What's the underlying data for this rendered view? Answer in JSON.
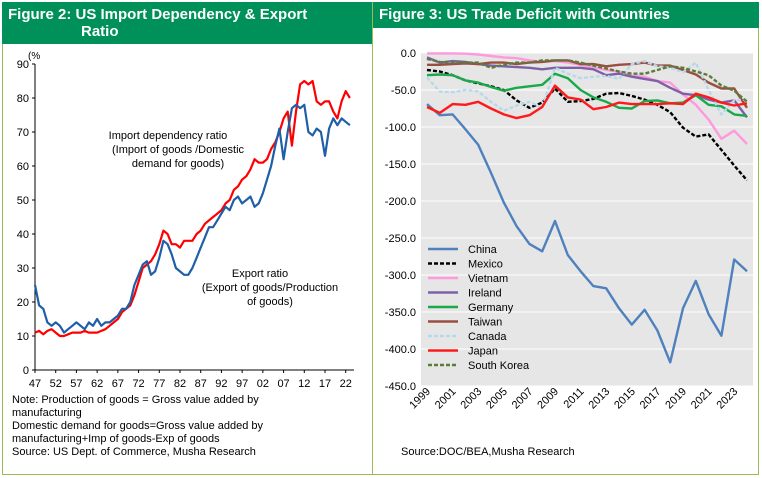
{
  "left": {
    "title_line1": "Figure 2: US Import Dependency & Export",
    "title_line2": "Ratio",
    "notes": [
      "Note: Production of goods = Gross value added by",
      "manufacturing",
      "Domestic demand for goods=Gross value added by",
      "manufacturing+Imp of goods-Exp of goods",
      "Source: US Dept. of  Commerce, Musha Research"
    ]
  },
  "right": {
    "title": "Figure 3: US Trade Deficit with Countries",
    "source": "Source:DOC/BEA,Musha Research"
  },
  "chart_data": [
    {
      "type": "line",
      "unit_label": "(%",
      "ylim": [
        0,
        90
      ],
      "yticks": [
        0,
        10,
        20,
        30,
        40,
        50,
        60,
        70,
        80,
        90
      ],
      "xlim": [
        47,
        24
      ],
      "xtick_labels": [
        "47",
        "52",
        "57",
        "62",
        "67",
        "72",
        "77",
        "82",
        "87",
        "92",
        "97",
        "02",
        "07",
        "12",
        "17",
        "22"
      ],
      "annotations": [
        {
          "lines": [
            "Import dependency ratio",
            "(Import of goods /Domestic",
            "demand for goods)"
          ]
        },
        {
          "lines": [
            "Export ratio",
            "(Export of goods/Production",
            "of goods)"
          ]
        }
      ],
      "series": [
        {
          "color": "#ff0000",
          "years": [
            1947,
            1948,
            1949,
            1950,
            1951,
            1952,
            1953,
            1954,
            1955,
            1956,
            1957,
            1958,
            1959,
            1960,
            1961,
            1962,
            1963,
            1964,
            1965,
            1966,
            1967,
            1968,
            1969,
            1970,
            1971,
            1972,
            1973,
            1974,
            1975,
            1976,
            1977,
            1978,
            1979,
            1980,
            1981,
            1982,
            1983,
            1984,
            1985,
            1986,
            1987,
            1988,
            1989,
            1990,
            1991,
            1992,
            1993,
            1994,
            1995,
            1996,
            1997,
            1998,
            1999,
            2000,
            2001,
            2002,
            2003,
            2004,
            2005,
            2006,
            2007,
            2008,
            2009,
            2010,
            2011,
            2012,
            2013,
            2014,
            2015,
            2016,
            2017,
            2018,
            2019,
            2020,
            2021,
            2022,
            2023
          ],
          "values": [
            11,
            11.5,
            10.5,
            11.5,
            12,
            11,
            10,
            10,
            10.5,
            11,
            11,
            11,
            11.5,
            11,
            11,
            11,
            11.5,
            12,
            13,
            14,
            15,
            17,
            18,
            19,
            22,
            26,
            30,
            31,
            32,
            34,
            37,
            41,
            40,
            37,
            37,
            36,
            38,
            38,
            38,
            40,
            41,
            43,
            44,
            45,
            46,
            47,
            49,
            50,
            53,
            54,
            56,
            57,
            59,
            62,
            61,
            61,
            62,
            65,
            67,
            70,
            74,
            76,
            66,
            76,
            84,
            85,
            84,
            85,
            79,
            78,
            79,
            79,
            76,
            74,
            79,
            82,
            80
          ]
        },
        {
          "color": "#1f5fa8",
          "years": [
            1947,
            1948,
            1949,
            1950,
            1951,
            1952,
            1953,
            1954,
            1955,
            1956,
            1957,
            1958,
            1959,
            1960,
            1961,
            1962,
            1963,
            1964,
            1965,
            1966,
            1967,
            1968,
            1969,
            1970,
            1971,
            1972,
            1973,
            1974,
            1975,
            1976,
            1977,
            1978,
            1979,
            1980,
            1981,
            1982,
            1983,
            1984,
            1985,
            1986,
            1987,
            1988,
            1989,
            1990,
            1991,
            1992,
            1993,
            1994,
            1995,
            1996,
            1997,
            1998,
            1999,
            2000,
            2001,
            2002,
            2003,
            2004,
            2005,
            2006,
            2007,
            2008,
            2009,
            2010,
            2011,
            2012,
            2013,
            2014,
            2015,
            2016,
            2017,
            2018,
            2019,
            2020,
            2021,
            2022,
            2023
          ],
          "values": [
            25,
            19,
            18,
            14,
            13,
            14,
            13,
            11,
            12,
            13,
            14,
            13,
            12,
            14,
            13,
            15,
            13,
            14,
            14,
            15,
            16,
            18,
            18,
            20,
            25,
            28,
            31,
            32,
            28,
            29,
            33,
            38,
            37,
            34,
            30,
            29,
            28,
            28,
            30,
            33,
            36,
            39,
            42,
            42,
            44,
            46,
            48,
            47,
            50,
            51,
            49,
            50,
            51,
            48,
            49,
            52,
            56,
            60,
            66,
            71,
            62,
            70,
            77,
            78,
            77,
            78,
            70,
            69,
            71,
            70,
            63,
            71,
            74,
            72,
            74,
            73,
            72
          ]
        }
      ]
    },
    {
      "type": "line",
      "ylim": [
        -450,
        0
      ],
      "yticks": [
        "0.0",
        "-50.0",
        "-100.0",
        "-150.0",
        "-200.0",
        "-250.0",
        "-300.0",
        "-350.0",
        "-400.0",
        "-450.0"
      ],
      "x_years": [
        1999,
        2000,
        2001,
        2002,
        2003,
        2004,
        2005,
        2006,
        2007,
        2008,
        2009,
        2010,
        2011,
        2012,
        2013,
        2014,
        2015,
        2016,
        2017,
        2018,
        2019,
        2020,
        2021,
        2022,
        2023,
        2024
      ],
      "xtick_labels": [
        "1999",
        "2001",
        "2003",
        "2005",
        "2007",
        "2009",
        "2011",
        "2013",
        "2015",
        "2017",
        "2019",
        "2021",
        "2023"
      ],
      "legend_position": "lower-left",
      "series": [
        {
          "name": "China",
          "color": "#4e81bd",
          "dash": "",
          "values": [
            -69,
            -84,
            -83,
            -103,
            -124,
            -162,
            -202,
            -234,
            -258,
            -268,
            -227,
            -273,
            -295,
            -315,
            -318,
            -345,
            -367,
            -347,
            -375,
            -418,
            -345,
            -308,
            -353,
            -382,
            -279,
            -295
          ]
        },
        {
          "name": "Mexico",
          "color": "#000000",
          "dash": "4,2",
          "values": [
            -23,
            -25,
            -30,
            -37,
            -41,
            -45,
            -50,
            -64,
            -74,
            -67,
            -48,
            -66,
            -65,
            -62,
            -55,
            -54,
            -58,
            -63,
            -70,
            -80,
            -101,
            -113,
            -110,
            -131,
            -152,
            -172
          ]
        },
        {
          "name": "Vietnam",
          "color": "#ff99dd",
          "dash": "",
          "values": [
            -0.5,
            -0.5,
            -0.5,
            -1,
            -2,
            -4,
            -6,
            -7,
            -10,
            -12,
            -11,
            -13,
            -16,
            -19,
            -23,
            -25,
            -31,
            -32,
            -38,
            -40,
            -56,
            -70,
            -90,
            -116,
            -105,
            -123
          ]
        },
        {
          "name": "Ireland",
          "color": "#7e60a8",
          "dash": "",
          "values": [
            -6,
            -13,
            -11,
            -12,
            -15,
            -17,
            -18,
            -19,
            -20,
            -22,
            -20,
            -20,
            -20,
            -22,
            -30,
            -28,
            -32,
            -35,
            -38,
            -47,
            -55,
            -57,
            -63,
            -67,
            -64,
            -87
          ]
        },
        {
          "name": "Germany",
          "color": "#19a94a",
          "dash": "",
          "values": [
            -30,
            -29,
            -30,
            -37,
            -40,
            -46,
            -51,
            -47,
            -45,
            -43,
            -28,
            -34,
            -50,
            -60,
            -66,
            -74,
            -75,
            -65,
            -64,
            -68,
            -67,
            -57,
            -70,
            -72,
            -83,
            -85
          ]
        },
        {
          "name": "Taiwan",
          "color": "#9a4e40",
          "dash": "",
          "values": [
            -16,
            -16,
            -15,
            -14,
            -15,
            -13,
            -13,
            -15,
            -13,
            -12,
            -10,
            -10,
            -15,
            -15,
            -18,
            -16,
            -15,
            -13,
            -17,
            -17,
            -23,
            -29,
            -40,
            -48,
            -48,
            -74
          ]
        },
        {
          "name": "Canada",
          "color": "#b7d9ea",
          "dash": "4,2",
          "values": [
            -33,
            -52,
            -53,
            -50,
            -52,
            -66,
            -78,
            -71,
            -66,
            -74,
            -20,
            -28,
            -34,
            -32,
            -31,
            -35,
            -15,
            -11,
            -18,
            -20,
            -26,
            -13,
            -50,
            -83,
            -64,
            -63
          ]
        },
        {
          "name": "Japan",
          "color": "#ff1a1a",
          "dash": "",
          "values": [
            -73,
            -81,
            -69,
            -70,
            -66,
            -75,
            -83,
            -88,
            -84,
            -73,
            -44,
            -60,
            -63,
            -76,
            -73,
            -67,
            -69,
            -69,
            -69,
            -68,
            -69,
            -55,
            -60,
            -67,
            -71,
            -68
          ]
        },
        {
          "name": "South Korea",
          "color": "#5c7d3a",
          "dash": "4,2",
          "values": [
            -8,
            -12,
            -13,
            -13,
            -13,
            -20,
            -16,
            -13,
            -13,
            -10,
            -10,
            -10,
            -13,
            -17,
            -21,
            -25,
            -28,
            -28,
            -23,
            -18,
            -20,
            -25,
            -30,
            -44,
            -51,
            -66
          ]
        }
      ]
    }
  ]
}
